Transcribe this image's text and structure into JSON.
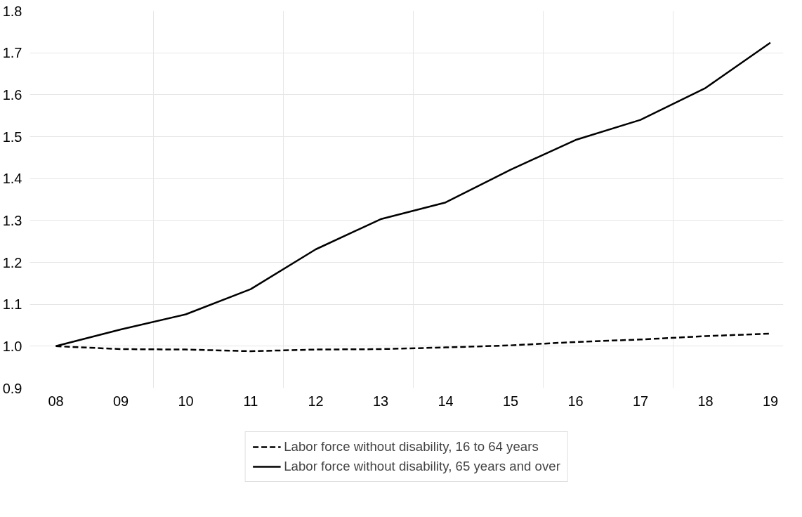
{
  "chart_data": {
    "type": "line",
    "categories": [
      "08",
      "09",
      "10",
      "11",
      "12",
      "13",
      "14",
      "15",
      "16",
      "17",
      "18",
      "19"
    ],
    "series": [
      {
        "name": "Labor force without disability, 16 to 64 years",
        "color": "#000000",
        "line_style": "dashed",
        "values": [
          1.0,
          0.993,
          0.992,
          0.988,
          0.992,
          0.993,
          0.997,
          1.002,
          1.01,
          1.016,
          1.024,
          1.03
        ]
      },
      {
        "name": "Labor force without disability, 65 years and over",
        "color": "#000000",
        "line_style": "solid",
        "values": [
          1.0,
          1.04,
          1.076,
          1.136,
          1.231,
          1.303,
          1.343,
          1.421,
          1.492,
          1.54,
          1.616,
          1.724
        ]
      }
    ],
    "ylim": [
      0.9,
      1.8
    ],
    "yticks": [
      {
        "value": 0.9,
        "label": "0.9"
      },
      {
        "value": 1.0,
        "label": "1.0"
      },
      {
        "value": 1.1,
        "label": "1.1"
      },
      {
        "value": 1.2,
        "label": "1.2"
      },
      {
        "value": 1.3,
        "label": "1.3"
      },
      {
        "value": 1.4,
        "label": "1.4"
      },
      {
        "value": 1.5,
        "label": "1.5"
      },
      {
        "value": 1.6,
        "label": "1.6"
      },
      {
        "value": 1.7,
        "label": "1.7"
      },
      {
        "value": 1.8,
        "label": "1.8"
      }
    ],
    "grid": true,
    "legend": "bottom",
    "marker": "none"
  }
}
